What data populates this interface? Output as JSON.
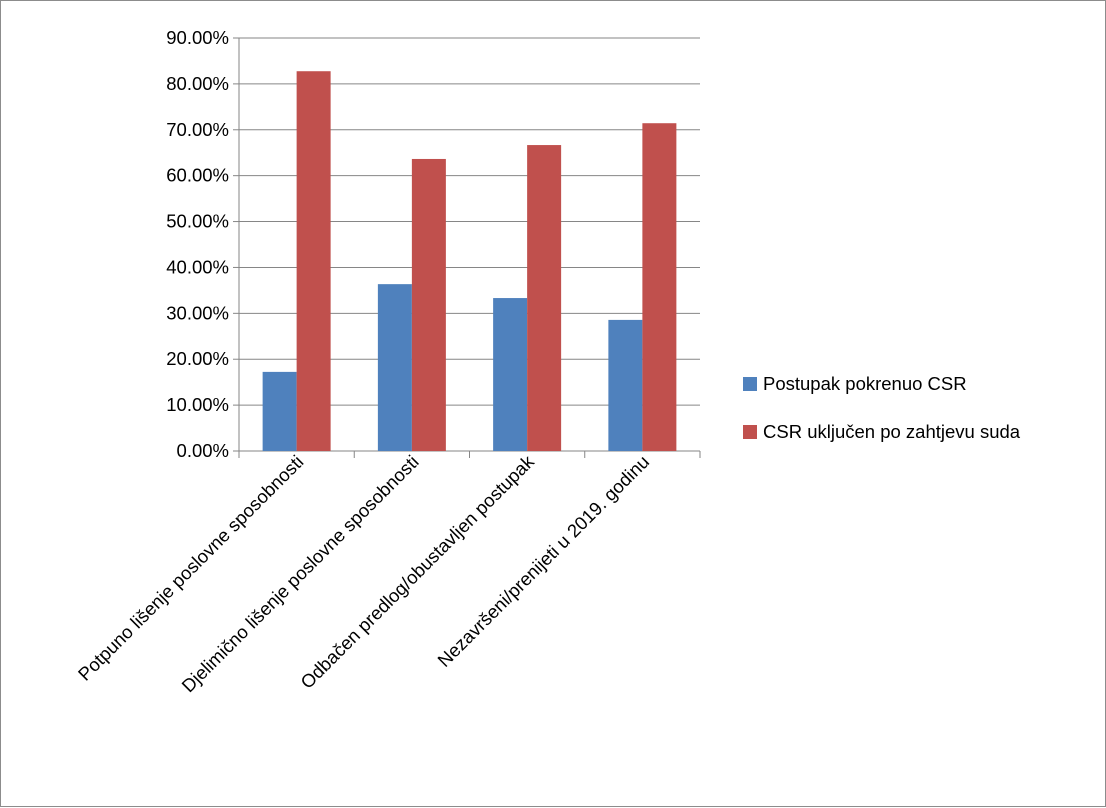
{
  "chart_data": {
    "type": "bar",
    "categories": [
      "Potpuno lišenje poslovne sposobnosti",
      "Djelimično lišenje poslovne sposobnosti",
      "Odbačen predlog/obustavljen postupak",
      "Nezavršeni/prenijeti u 2019. godinu"
    ],
    "series": [
      {
        "name": "Postupak pokrenuo CSR",
        "color": "#4f81bd",
        "values": [
          17.24,
          36.36,
          33.33,
          28.57
        ]
      },
      {
        "name": "CSR uključen po zahtjevu suda",
        "color": "#c0504d",
        "values": [
          82.76,
          63.64,
          66.67,
          71.43
        ]
      }
    ],
    "ylim": [
      0,
      90
    ],
    "y_ticks": [
      "0.00%",
      "10.00%",
      "20.00%",
      "30.00%",
      "40.00%",
      "50.00%",
      "60.00%",
      "70.00%",
      "80.00%",
      "90.00%"
    ],
    "grid": true,
    "legend_position": "right",
    "xlabel": "",
    "ylabel": "",
    "title": ""
  }
}
